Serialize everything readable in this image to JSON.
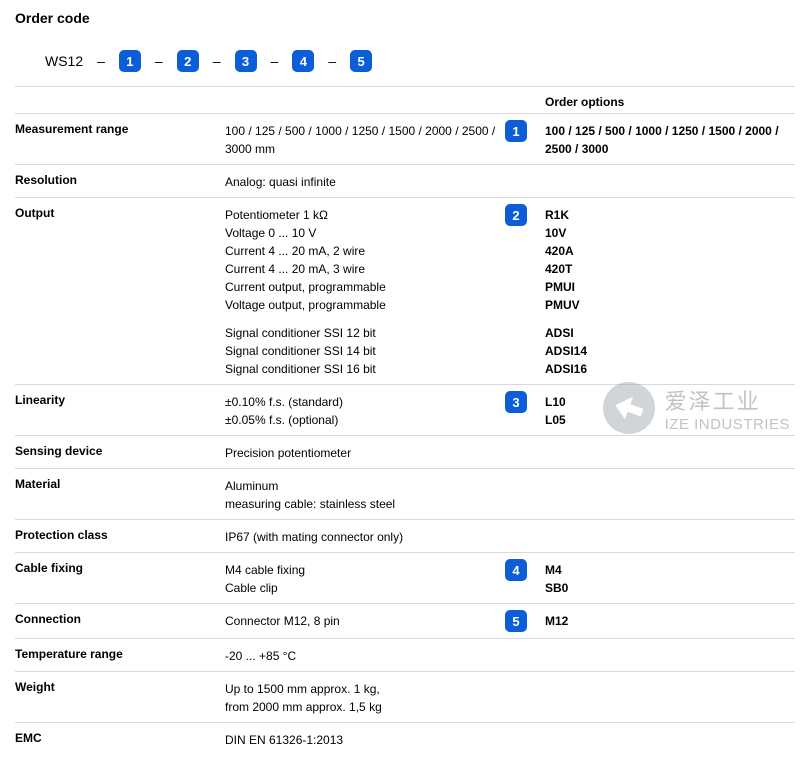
{
  "title": "Order code",
  "orderline": {
    "prefix": "WS12",
    "slots": [
      "1",
      "2",
      "3",
      "4",
      "5"
    ]
  },
  "options_header": "Order options",
  "rows": [
    {
      "label": "Measurement range",
      "value": "100 / 125 / 500 / 1000 / 1250 / 1500 / 2000 / 2500 / 3000 mm",
      "badge": "1",
      "options": "100 / 125 / 500 / 1000 / 1250 / 1500 / 2000 / 2500 / 3000"
    },
    {
      "label": "Resolution",
      "value": "Analog: quasi infinite",
      "badge": "",
      "options": ""
    },
    {
      "label": "Output",
      "value": "Potentiometer 1 kΩ\nVoltage 0 ... 10 V\nCurrent 4 ... 20 mA, 2 wire\nCurrent 4 ... 20 mA, 3 wire\nCurrent output, programmable\nVoltage output, programmable",
      "badge": "2",
      "options": "R1K\n10V\n420A\n420T\nPMUI\nPMUV",
      "sub": {
        "value": "Signal conditioner SSI 12 bit\nSignal conditioner SSI 14 bit\nSignal conditioner SSI 16 bit",
        "options": "ADSI\nADSI14\nADSI16"
      }
    },
    {
      "label": "Linearity",
      "value": "±0.10% f.s. (standard)\n±0.05% f.s. (optional)",
      "badge": "3",
      "options": "L10\nL05"
    },
    {
      "label": "Sensing device",
      "value": "Precision potentiometer",
      "badge": "",
      "options": ""
    },
    {
      "label": "Material",
      "value": "Aluminum\nmeasuring cable: stainless steel",
      "badge": "",
      "options": ""
    },
    {
      "label": "Protection class",
      "value": "IP67 (with mating connector only)",
      "badge": "",
      "options": ""
    },
    {
      "label": "Cable fixing",
      "value": "M4 cable fixing\nCable clip",
      "badge": "4",
      "options": "M4\nSB0"
    },
    {
      "label": "Connection",
      "value": "Connector M12, 8 pin",
      "badge": "5",
      "options": "M12"
    },
    {
      "label": "Temperature range",
      "value": "-20 ... +85 °C",
      "badge": "",
      "options": ""
    },
    {
      "label": "Weight",
      "value": "Up to 1500 mm approx. 1 kg,\nfrom 2000 mm approx. 1,5 kg",
      "badge": "",
      "options": ""
    },
    {
      "label": "EMC",
      "value": "DIN EN 61326-1:2013",
      "badge": "",
      "options": ""
    }
  ],
  "watermark": {
    "cn": "爱泽工业",
    "en": "IZE INDUSTRIES",
    "circle_color": "#9aa3ab",
    "arrow_color": "#ffffff"
  },
  "colors": {
    "badge_bg": "#0b5ed7",
    "badge_fg": "#ffffff",
    "border": "#d9d9d9"
  }
}
